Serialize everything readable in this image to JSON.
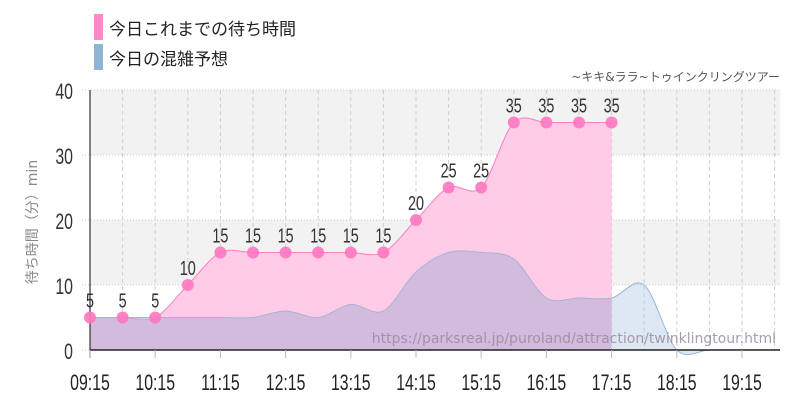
{
  "legend": [
    {
      "label": "今日これまでの待ち時間",
      "color": "#ff88c8"
    },
    {
      "label": "今日の混雑予想",
      "color": "#90b4d4"
    }
  ],
  "subtitle": "~キキ&ララ~トゥインクリングツアー",
  "watermark": "https://parksreal.jp/puroland/attraction/twinklingtour.html",
  "ylabel": "待ち時間（分）min",
  "chart_data": {
    "type": "area",
    "title": "~キキ&ララ~トゥインクリングツアー",
    "xlabel": "",
    "ylabel": "待ち時間（分）min",
    "ylim": [
      0,
      40
    ],
    "yticks": [
      0,
      10,
      20,
      30,
      40
    ],
    "xtick_labels": [
      "09:15",
      "10:15",
      "11:15",
      "12:15",
      "13:15",
      "14:15",
      "15:15",
      "16:15",
      "17:15",
      "18:15",
      "19:15"
    ],
    "grid": true,
    "legend_position": "top-left",
    "x": [
      "09:15",
      "09:45",
      "10:15",
      "10:45",
      "11:15",
      "11:45",
      "12:15",
      "12:45",
      "13:15",
      "13:45",
      "14:15",
      "14:45",
      "15:15",
      "15:45",
      "16:15",
      "16:45",
      "17:15",
      "17:45",
      "18:15",
      "18:45",
      "19:15",
      "19:45"
    ],
    "series": [
      {
        "name": "今日これまでの待ち時間",
        "color": "#ff88c8",
        "values": [
          5,
          5,
          5,
          10,
          15,
          15,
          15,
          15,
          15,
          15,
          20,
          25,
          25,
          35,
          35,
          35,
          35,
          null,
          null,
          null,
          null,
          null
        ]
      },
      {
        "name": "今日の混雑予想",
        "color": "#90b4d4",
        "values": [
          5,
          5,
          5,
          5,
          5,
          5,
          6,
          5,
          7,
          6,
          12,
          15,
          15,
          14,
          8,
          8,
          8,
          10,
          0,
          0,
          0,
          0
        ]
      }
    ]
  }
}
